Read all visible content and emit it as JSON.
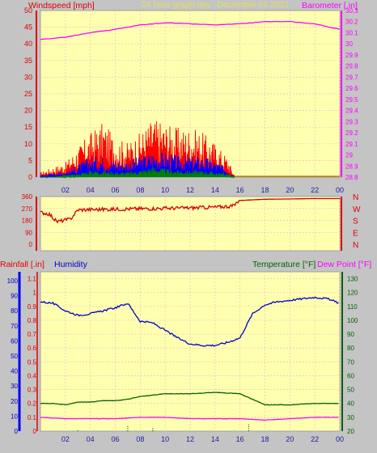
{
  "header": {
    "windspeed_label": "Windspeed [mph]",
    "graph_title": "24 hour graph day",
    "date_label": "December 01 2021",
    "barometer_label": "Barometer [.in]"
  },
  "colors": {
    "background": "#c4c4c4",
    "plot_bg": "#ffffb0",
    "grid": "#f0c0c0",
    "wind_max": "#ff0000",
    "wind_avg": "#0000ff",
    "wind_min": "#008000",
    "barometer": "#ff00ff",
    "direction": "#d00000",
    "humidity": "#0000cc",
    "temperature": "#006400",
    "dewpoint": "#ff00ff",
    "rainfall": "#0000ff"
  },
  "chart_data": [
    {
      "type": "line",
      "name": "wind-barometer",
      "x_ticks": [
        "02",
        "04",
        "06",
        "08",
        "10",
        "12",
        "14",
        "16",
        "18",
        "20",
        "22",
        "00"
      ],
      "y_left_ticks": [
        "0",
        "5",
        "10",
        "15",
        "20",
        "25",
        "30",
        "35",
        "40",
        "45",
        "50"
      ],
      "y_right_ticks": [
        "28.8",
        "28.9",
        "29",
        "29.1",
        "29.2",
        "29.3",
        "29.4",
        "29.5",
        "29.6",
        "29.7",
        "29.8",
        "29.9",
        "30",
        "30.1",
        "30.2",
        "30.3"
      ],
      "ylim_left": [
        0,
        50
      ],
      "ylim_right": [
        28.8,
        30.3
      ],
      "grid": true,
      "series": [
        {
          "axis": "left",
          "x": [
            0,
            1,
            2,
            3,
            4,
            5,
            6,
            7,
            8,
            9,
            10,
            11,
            12,
            13,
            14,
            15,
            15.6
          ],
          "values": [
            1,
            2,
            3,
            6,
            9,
            11,
            8,
            7,
            9,
            12,
            11,
            10,
            10,
            9,
            7,
            4,
            0
          ]
        },
        {
          "axis": "left",
          "x": [
            0,
            1,
            2,
            3,
            4,
            5,
            6,
            7,
            8,
            9,
            10,
            11,
            12,
            13,
            14,
            15,
            15.6
          ],
          "values": [
            0.5,
            1,
            1.5,
            3,
            5,
            5,
            4,
            4,
            5,
            6,
            6,
            5,
            5,
            5,
            4,
            2,
            0
          ]
        },
        {
          "axis": "left",
          "x": [
            0,
            1,
            2,
            3,
            4,
            5,
            6,
            7,
            8,
            9,
            10,
            11,
            12,
            13,
            14,
            15,
            15.6
          ],
          "values": [
            0,
            0,
            0.5,
            1,
            2,
            2,
            1.5,
            1.5,
            2,
            3,
            2.5,
            2,
            2,
            2,
            1.5,
            1,
            0
          ]
        },
        {
          "axis": "right",
          "x": [
            0,
            2,
            4,
            6,
            8,
            10,
            12,
            14,
            16,
            18,
            20,
            22,
            24
          ],
          "values": [
            30.04,
            30.06,
            30.1,
            30.13,
            30.17,
            30.19,
            30.18,
            30.17,
            30.18,
            30.2,
            30.2,
            30.18,
            30.13
          ]
        }
      ]
    },
    {
      "type": "line",
      "name": "wind-direction",
      "x_ticks": [
        "02",
        "04",
        "06",
        "08",
        "10",
        "12",
        "14",
        "16",
        "18",
        "20",
        "22",
        "00"
      ],
      "y_left_ticks": [
        "0",
        "90",
        "180",
        "270",
        "360"
      ],
      "y_right_ticks": [
        "N",
        "E",
        "S",
        "W",
        "N"
      ],
      "ylim": [
        0,
        360
      ],
      "series": [
        {
          "x": [
            0,
            0.7,
            1.3,
            2.4,
            3,
            6,
            9,
            12,
            14,
            15.5,
            15.9,
            18,
            20,
            22,
            24
          ],
          "values": [
            240,
            230,
            170,
            190,
            260,
            265,
            270,
            275,
            280,
            290,
            330,
            340,
            342,
            345,
            345
          ]
        }
      ]
    },
    {
      "type": "line",
      "name": "humidity-temperature",
      "left_labels": {
        "rainfall": "Rainfall [.in]",
        "humidity": "Humidity"
      },
      "right_labels": {
        "temperature": "Temperature [°F]",
        "dewpoint": "Dew Point [°F]"
      },
      "x_ticks": [
        "02",
        "04",
        "06",
        "08",
        "10",
        "12",
        "14",
        "16",
        "18",
        "20",
        "22",
        "00"
      ],
      "y_rain_ticks": [
        "0",
        "0.1",
        "0.2",
        "0.3",
        "0.4",
        "0.5",
        "0.6",
        "0.7",
        "0.8",
        "0.9",
        "1",
        "1.1"
      ],
      "y_humidity_ticks": [
        "0",
        "10",
        "20",
        "30",
        "40",
        "50",
        "60",
        "70",
        "80",
        "90",
        "100"
      ],
      "y_temp_ticks": [
        "20",
        "30",
        "40",
        "50",
        "60",
        "70",
        "80",
        "90",
        "100",
        "110",
        "120",
        "130"
      ],
      "ylim_rain": [
        0,
        1.15
      ],
      "ylim_humidity": [
        0,
        100
      ],
      "ylim_temp": [
        20,
        135
      ],
      "series": [
        {
          "axis": "humidity",
          "x": [
            0,
            1,
            2,
            3,
            4,
            5,
            6,
            7,
            8,
            9,
            10,
            11,
            12,
            13,
            14,
            15,
            16,
            17,
            18,
            19,
            20,
            21,
            22,
            23,
            24
          ],
          "values": [
            86,
            85,
            80,
            77,
            78,
            80,
            82,
            85,
            73,
            72,
            67,
            62,
            58,
            57,
            57,
            59,
            62,
            78,
            84,
            86,
            87,
            88,
            89,
            88,
            85
          ]
        },
        {
          "axis": "temp",
          "x": [
            0,
            1,
            2,
            3,
            4,
            5,
            6,
            7,
            8,
            9,
            10,
            12,
            14,
            16,
            17,
            18,
            20,
            22,
            24
          ],
          "values": [
            40,
            40,
            39,
            41,
            41,
            42,
            42,
            43,
            45,
            46,
            47,
            47,
            48,
            47,
            43,
            39,
            39,
            40,
            40
          ]
        },
        {
          "axis": "temp",
          "x": [
            0,
            2,
            4,
            6,
            8,
            10,
            12,
            14,
            16,
            18,
            20,
            22,
            24
          ],
          "values": [
            30,
            29,
            29,
            29,
            30,
            30,
            29,
            29,
            29,
            28,
            29,
            30,
            30
          ]
        },
        {
          "axis": "rain",
          "x": [
            3.0,
            7.0,
            9.0,
            16.7
          ],
          "values": [
            0.01,
            0.04,
            0.03,
            0.05
          ]
        }
      ]
    }
  ]
}
